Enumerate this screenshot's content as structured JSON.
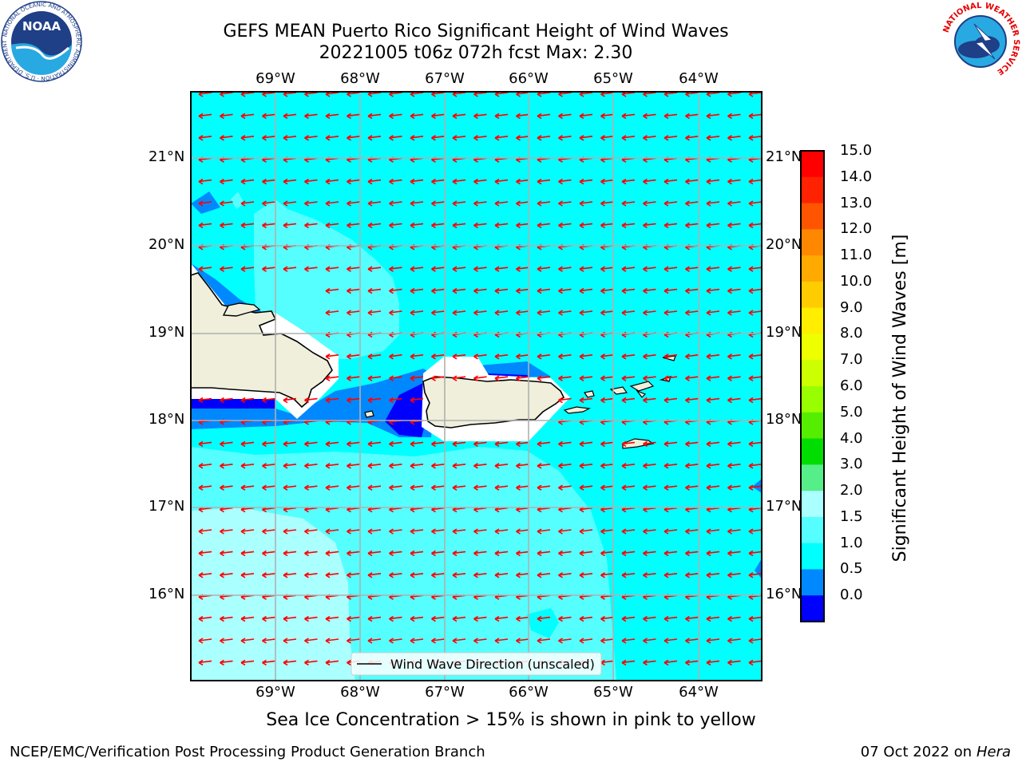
{
  "title_line1": "GEFS MEAN Puerto Rico Significant Height of Wind Waves",
  "title_line2": "20221005 t06z 072h fcst   Max: 2.30",
  "lon_labels": [
    "69°W",
    "68°W",
    "67°W",
    "66°W",
    "65°W",
    "64°W"
  ],
  "lat_labels": [
    "21°N",
    "20°N",
    "19°N",
    "18°N",
    "17°N",
    "16°N"
  ],
  "legend_label": "Wind Wave Direction (unscaled)",
  "colorbar": {
    "label": "Significant Height of Wind Waves [m]",
    "ticks": [
      "15.0",
      "14.0",
      "13.0",
      "12.0",
      "11.0",
      "10.0",
      "9.0",
      "8.0",
      "7.0",
      "6.0",
      "5.0",
      "4.0",
      "3.0",
      "2.0",
      "1.5",
      "1.0",
      "0.5",
      "0.0"
    ],
    "colors": [
      "#ff0000",
      "#ff2200",
      "#ff5500",
      "#ff8800",
      "#ffaa00",
      "#ffcc00",
      "#ffee00",
      "#eeff00",
      "#ccff00",
      "#99ff00",
      "#55ee00",
      "#00dd00",
      "#55ee88",
      "#aaffff",
      "#55ffff",
      "#00ffff",
      "#0088ff",
      "#0000ff"
    ]
  },
  "field_colors": {
    "0.0-0.5": "#0000ff",
    "0.5-1.0": "#0088ff",
    "1.0-1.5": "#00ffff",
    "1.5-2.0": "#55ffff",
    "2.0-3.0": "#aaffff",
    "land": "#efefdb",
    "arrow": "#ff0000"
  },
  "arrow_direction": "westward",
  "footnote": "Sea Ice Concentration > 15% is shown in pink to yellow",
  "credit_left": "NCEP/EMC/Verification Post Processing Product Generation Branch",
  "credit_right_date": "07 Oct 2022 on ",
  "credit_right_host": "Hera",
  "logos": {
    "noaa_text": "NOAA",
    "noaa_ring_text": "NATIONAL OCEANIC AND ATMOSPHERIC ADMINISTRATION · U.S. DEPARTMENT OF COMMERCE",
    "nws_ring_text": "NATIONAL WEATHER SERVICE"
  }
}
